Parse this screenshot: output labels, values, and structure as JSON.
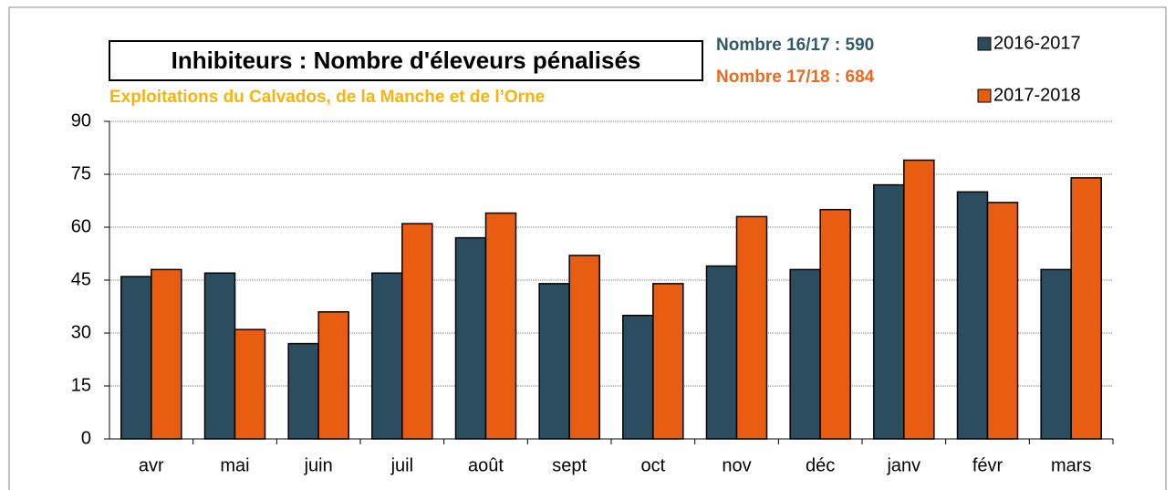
{
  "chart_data": {
    "type": "bar",
    "title": "Inhibiteurs : Nombre d'éleveurs pénalisés",
    "subtitle": "Exploitations du Calvados, de la Manche et de l’Orne",
    "annotations": [
      {
        "text": "Nombre 16/17 : 590",
        "color": "#2f5a6c"
      },
      {
        "text": "Nombre 17/18 : 684",
        "color": "#ea6a1f"
      }
    ],
    "categories": [
      "avr",
      "mai",
      "juin",
      "juil",
      "août",
      "sept",
      "oct",
      "nov",
      "déc",
      "janv",
      "févr",
      "mars"
    ],
    "series": [
      {
        "name": "2016-2017",
        "color": "#2b4d5f",
        "values": [
          46,
          47,
          27,
          47,
          57,
          44,
          35,
          49,
          48,
          72,
          70,
          48
        ]
      },
      {
        "name": "2017-2018",
        "color": "#e85d12",
        "values": [
          48,
          31,
          36,
          61,
          64,
          52,
          44,
          63,
          65,
          79,
          67,
          74
        ]
      }
    ],
    "ylim": [
      0,
      90
    ],
    "yticks": [
      0,
      15,
      30,
      45,
      60,
      75,
      90
    ],
    "grid": true,
    "legend": "top-right"
  }
}
